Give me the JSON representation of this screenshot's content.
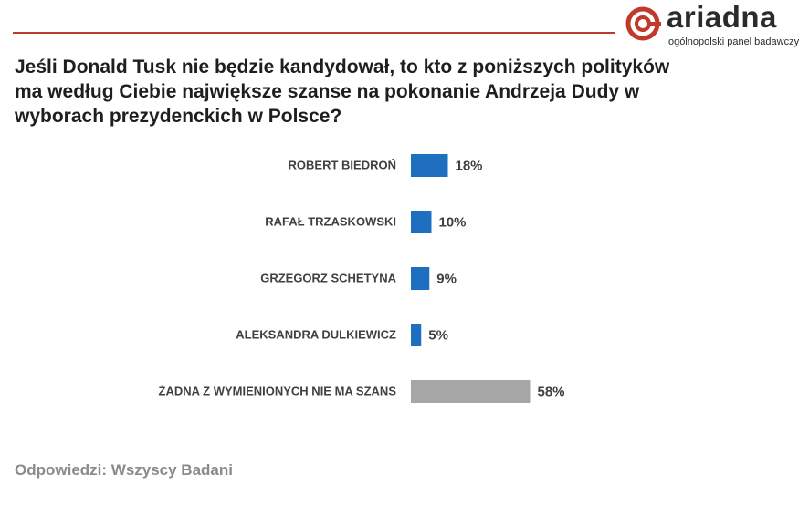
{
  "brand": {
    "name": "ariadna",
    "tagline": "ogólnopolski panel badawczy",
    "accent_color": "#c0392b"
  },
  "question": "Jeśli Donald Tusk nie będzie kandydował, to kto z poniższych polityków ma według Ciebie największe szanse na pokonanie Andrzeja Dudy w wyborach prezydenckich w Polsce?",
  "footer": "Odpowiedzi: Wszyscy Badani",
  "chart_data": {
    "type": "bar",
    "orientation": "horizontal",
    "categories": [
      "ROBERT BIEDROŃ",
      "RAFAŁ TRZASKOWSKI",
      "GRZEGORZ SCHETYNA",
      "ALEKSANDRA DULKIEWICZ",
      "ŻADNA Z WYMIENIONYCH  NIE MA SZANS"
    ],
    "values": [
      18,
      10,
      9,
      5,
      58
    ],
    "value_labels": [
      "18%",
      "10%",
      "9%",
      "5%",
      "58%"
    ],
    "unit": "%",
    "bar_colors": [
      "#1f6fc0",
      "#1f6fc0",
      "#1f6fc0",
      "#1f6fc0",
      "#a6a6a6"
    ],
    "label_color": "#404040",
    "grid": false,
    "legend": "none"
  }
}
